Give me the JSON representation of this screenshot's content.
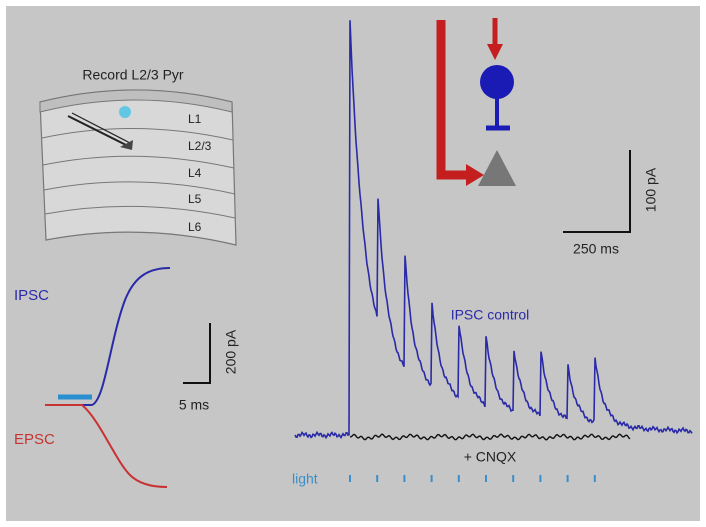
{
  "schematic": {
    "title": "Record L2/3 Pyr",
    "layers": [
      "L1",
      "L2/3",
      "L4",
      "L5",
      "L6"
    ]
  },
  "left_panel": {
    "ipsc_label": "IPSC",
    "epsc_label": "EPSC",
    "scale_y": "200 pA",
    "scale_x": "5 ms"
  },
  "right_panel": {
    "control_label": "IPSC control",
    "cnqx_label": "+ CNQX",
    "light_label": "light",
    "scale_y": "100 pA",
    "scale_x": "250 ms"
  }
}
